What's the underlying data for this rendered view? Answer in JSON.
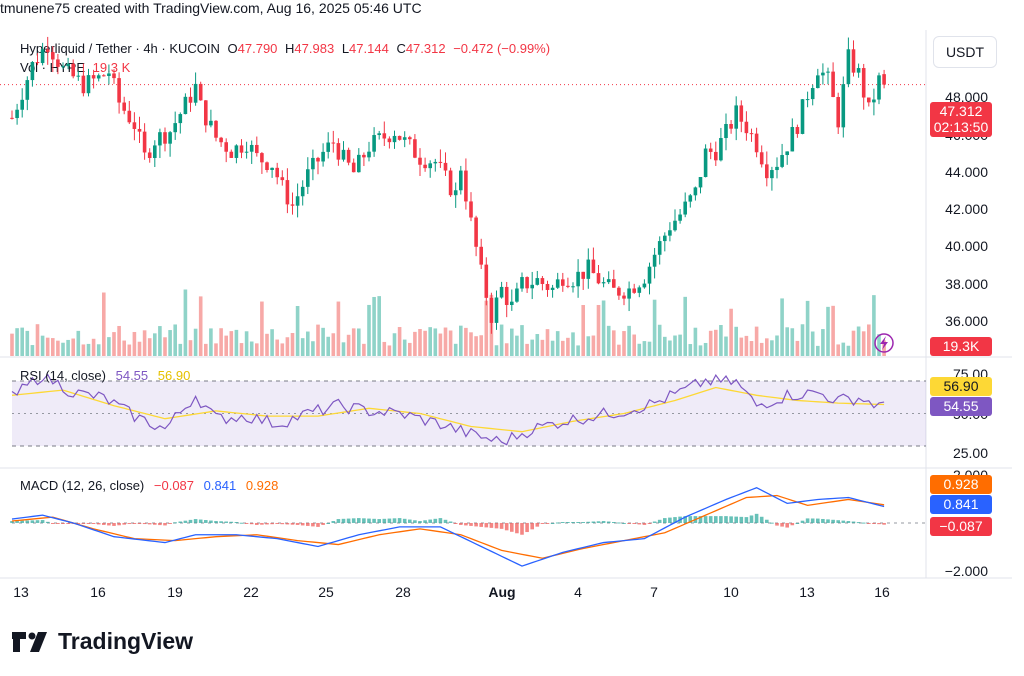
{
  "header": {
    "author_line": "tmunene75 created with TradingView.com, Aug 16, 2025 05:46 UTC"
  },
  "symbol": {
    "name": "Hyperliquid / Tether · 4h · KUCOIN",
    "open_label": "O",
    "open": "47.790",
    "high_label": "H",
    "high": "47.983",
    "low_label": "L",
    "low": "47.144",
    "close_label": "C",
    "close": "47.312",
    "change": "−0.472 (−0.99%)"
  },
  "volume_legend": {
    "label": "Vol · HYPE",
    "value": "19.3 K"
  },
  "currency_button": "USDT",
  "price_axis": {
    "ticks": [
      "48.000",
      "46.000",
      "44.000",
      "42.000",
      "40.000",
      "38.000",
      "36.000"
    ],
    "last_price": "47.312",
    "countdown": "02:13:50",
    "volume_badge": "19.3K"
  },
  "rsi": {
    "legend_label": "RSI (14, close)",
    "rsi_value": "54.55",
    "ma_value": "56.90",
    "ticks": [
      "75.00",
      "50.00",
      "25.00"
    ]
  },
  "macd": {
    "legend_label": "MACD (12, 26, close)",
    "hist_value": "−0.087",
    "macd_value": "0.841",
    "signal_value": "0.928",
    "ticks": [
      "2.000",
      "−2.000"
    ]
  },
  "time_axis": [
    "13",
    "16",
    "19",
    "22",
    "25",
    "28",
    "Aug",
    "4",
    "7",
    "10",
    "13",
    "16"
  ],
  "footer": {
    "brand": "TradingView"
  },
  "colors": {
    "up": "#089981",
    "down": "#f23645",
    "rsi_line": "#7e57c2",
    "rsi_ma": "#fdd835",
    "macd_line": "#2962ff",
    "signal_line": "#ff6d00"
  },
  "chart_data": {
    "type": "candlestick",
    "title": "Hyperliquid / Tether · 4h · KUCOIN",
    "ylim": [
      35,
      49.8
    ],
    "price_path": [
      [
        0,
        45.8
      ],
      [
        4,
        48.2
      ],
      [
        7,
        49.2
      ],
      [
        10,
        48.0
      ],
      [
        14,
        47.3
      ],
      [
        17,
        47.6
      ],
      [
        19,
        47.9
      ],
      [
        21,
        46.5
      ],
      [
        24,
        45.5
      ],
      [
        26,
        44.0
      ],
      [
        28,
        44.8
      ],
      [
        31,
        45.2
      ],
      [
        33,
        46.0
      ],
      [
        36,
        47.2
      ],
      [
        37,
        46.3
      ],
      [
        40,
        44.9
      ],
      [
        43,
        44.3
      ],
      [
        46,
        44.7
      ],
      [
        48,
        44.0
      ],
      [
        51,
        43.7
      ],
      [
        53,
        42.6
      ],
      [
        55,
        41.8
      ],
      [
        58,
        43.2
      ],
      [
        61,
        44.2
      ],
      [
        63,
        44.7
      ],
      [
        65,
        43.9
      ],
      [
        67,
        43.3
      ],
      [
        70,
        44.5
      ],
      [
        72,
        44.8
      ],
      [
        75,
        45.2
      ],
      [
        77,
        44.7
      ],
      [
        80,
        44.0
      ],
      [
        83,
        43.8
      ],
      [
        85,
        43.0
      ],
      [
        87,
        42.3
      ],
      [
        88,
        43.6
      ],
      [
        90,
        41.0
      ],
      [
        92,
        38.7
      ],
      [
        94,
        36.8
      ],
      [
        96,
        38.0
      ],
      [
        98,
        37.2
      ],
      [
        100,
        38.2
      ],
      [
        103,
        38.4
      ],
      [
        106,
        38.0
      ],
      [
        108,
        38.6
      ],
      [
        110,
        38.5
      ],
      [
        113,
        38.9
      ],
      [
        116,
        38.2
      ],
      [
        118,
        37.9
      ],
      [
        121,
        38.0
      ],
      [
        124,
        38.6
      ],
      [
        126,
        39.6
      ],
      [
        129,
        40.9
      ],
      [
        131,
        41.4
      ],
      [
        134,
        42.4
      ],
      [
        136,
        44.2
      ],
      [
        138,
        44.3
      ],
      [
        140,
        45.1
      ],
      [
        142,
        46.0
      ],
      [
        144,
        45.4
      ],
      [
        146,
        44.6
      ],
      [
        148,
        43.5
      ],
      [
        150,
        43.8
      ],
      [
        152,
        44.6
      ],
      [
        154,
        45.5
      ],
      [
        156,
        46.9
      ],
      [
        158,
        48.1
      ],
      [
        160,
        47.5
      ],
      [
        162,
        45.7
      ],
      [
        164,
        48.5
      ],
      [
        166,
        47.8
      ],
      [
        168,
        46.1
      ],
      [
        170,
        47.5
      ],
      [
        171,
        47.3
      ]
    ],
    "rsi_path": [
      [
        0,
        62
      ],
      [
        6,
        80
      ],
      [
        12,
        66
      ],
      [
        18,
        62
      ],
      [
        24,
        48
      ],
      [
        30,
        38
      ],
      [
        36,
        64
      ],
      [
        40,
        46
      ],
      [
        46,
        48
      ],
      [
        52,
        42
      ],
      [
        58,
        50
      ],
      [
        64,
        56
      ],
      [
        70,
        52
      ],
      [
        76,
        50
      ],
      [
        84,
        42
      ],
      [
        90,
        34
      ],
      [
        96,
        28
      ],
      [
        102,
        38
      ],
      [
        108,
        44
      ],
      [
        114,
        48
      ],
      [
        120,
        52
      ],
      [
        126,
        58
      ],
      [
        132,
        68
      ],
      [
        136,
        75
      ],
      [
        142,
        74
      ],
      [
        146,
        56
      ],
      [
        152,
        64
      ],
      [
        158,
        66
      ],
      [
        162,
        60
      ],
      [
        166,
        62
      ],
      [
        170,
        56
      ],
      [
        171,
        54.55
      ]
    ],
    "rsi_ma_path": [
      [
        0,
        64
      ],
      [
        10,
        68
      ],
      [
        20,
        56
      ],
      [
        30,
        46
      ],
      [
        40,
        52
      ],
      [
        50,
        48
      ],
      [
        60,
        48
      ],
      [
        70,
        54
      ],
      [
        80,
        50
      ],
      [
        90,
        40
      ],
      [
        100,
        36
      ],
      [
        110,
        44
      ],
      [
        120,
        50
      ],
      [
        130,
        60
      ],
      [
        138,
        70
      ],
      [
        146,
        64
      ],
      [
        154,
        60
      ],
      [
        162,
        58
      ],
      [
        171,
        56.9
      ]
    ],
    "macd_path": [
      [
        0,
        0.2
      ],
      [
        6,
        0.4
      ],
      [
        12,
        0.0
      ],
      [
        20,
        -0.7
      ],
      [
        30,
        -1.0
      ],
      [
        36,
        -0.6
      ],
      [
        44,
        -0.6
      ],
      [
        52,
        -0.8
      ],
      [
        60,
        -1.2
      ],
      [
        68,
        -0.6
      ],
      [
        76,
        -0.2
      ],
      [
        84,
        -0.2
      ],
      [
        92,
        -1.2
      ],
      [
        100,
        -2.2
      ],
      [
        108,
        -1.5
      ],
      [
        116,
        -1.0
      ],
      [
        124,
        -0.8
      ],
      [
        132,
        0.3
      ],
      [
        140,
        1.2
      ],
      [
        146,
        1.8
      ],
      [
        152,
        1.0
      ],
      [
        158,
        1.2
      ],
      [
        164,
        1.3
      ],
      [
        171,
        0.841
      ]
    ],
    "signal_path": [
      [
        0,
        0.1
      ],
      [
        8,
        0.3
      ],
      [
        16,
        -0.3
      ],
      [
        24,
        -0.8
      ],
      [
        32,
        -0.9
      ],
      [
        40,
        -0.7
      ],
      [
        48,
        -0.6
      ],
      [
        56,
        -0.9
      ],
      [
        64,
        -1.1
      ],
      [
        72,
        -0.6
      ],
      [
        80,
        -0.3
      ],
      [
        88,
        -0.6
      ],
      [
        96,
        -1.4
      ],
      [
        104,
        -1.8
      ],
      [
        112,
        -1.3
      ],
      [
        120,
        -0.9
      ],
      [
        128,
        -0.5
      ],
      [
        136,
        0.4
      ],
      [
        144,
        1.3
      ],
      [
        150,
        1.4
      ],
      [
        156,
        0.9
      ],
      [
        164,
        1.2
      ],
      [
        171,
        0.928
      ]
    ],
    "macd_ylim": [
      -2.4,
      2.5
    ]
  }
}
